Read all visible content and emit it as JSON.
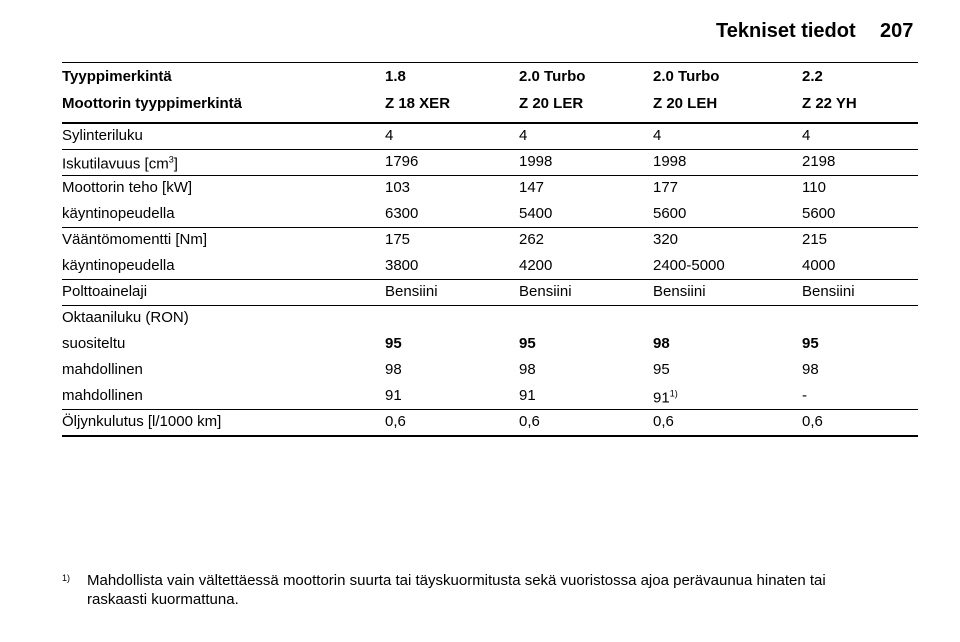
{
  "header": {
    "title": "Tekniset tiedot",
    "page": "207"
  },
  "table": {
    "head": [
      [
        "Tyyppimerkintä",
        "1.8",
        "2.0 Turbo",
        "2.0 Turbo",
        "2.2"
      ],
      [
        "Moottorin tyyppimerkintä",
        "Z 18 XER",
        "Z 20 LER",
        "Z 20 LEH",
        "Z 22 YH"
      ]
    ],
    "groups": [
      [
        {
          "label": "Sylinteriluku",
          "values": [
            "4",
            "4",
            "4",
            "4"
          ]
        }
      ],
      [
        {
          "label": "Iskutilavuus [cm",
          "label_sup": "3",
          "label_tail": "]",
          "values": [
            "1796",
            "1998",
            "1998",
            "2198"
          ]
        }
      ],
      [
        {
          "label": "Moottorin teho [kW]",
          "values": [
            "103",
            "147",
            "177",
            "110"
          ]
        },
        {
          "label": "käyntinopeudella",
          "values": [
            "6300",
            "5400",
            "5600",
            "5600"
          ]
        }
      ],
      [
        {
          "label": "Vääntömomentti [Nm]",
          "values": [
            "175",
            "262",
            "320",
            "215"
          ]
        },
        {
          "label": "käyntinopeudella",
          "values": [
            "3800",
            "4200",
            "2400-5000",
            "4000"
          ]
        }
      ],
      [
        {
          "label": "Polttoainelaji",
          "values": [
            "Bensiini",
            "Bensiini",
            "Bensiini",
            "Bensiini"
          ]
        }
      ],
      [
        {
          "label": "Oktaaniluku (RON)"
        },
        {
          "label": "suositeltu",
          "bold": true,
          "values": [
            "95",
            "95",
            "98",
            "95"
          ]
        },
        {
          "label": "mahdollinen",
          "values": [
            "98",
            "98",
            "95",
            "98"
          ]
        },
        {
          "label": "mahdollinen",
          "values": [
            "91",
            "91",
            {
              "text": "91",
              "sup": "1)"
            },
            "-"
          ]
        }
      ],
      [
        {
          "label": "Öljynkulutus [l/1000 km]",
          "values": [
            "0,6",
            "0,6",
            "0,6",
            "0,6"
          ]
        }
      ]
    ]
  },
  "footnote": {
    "marker": "1)",
    "lines": [
      "Mahdollista vain vältettäessä moottorin suurta tai täyskuormitusta sekä vuoristossa ajoa perävaunua hinaten tai",
      "raskaasti kuormattuna."
    ]
  }
}
